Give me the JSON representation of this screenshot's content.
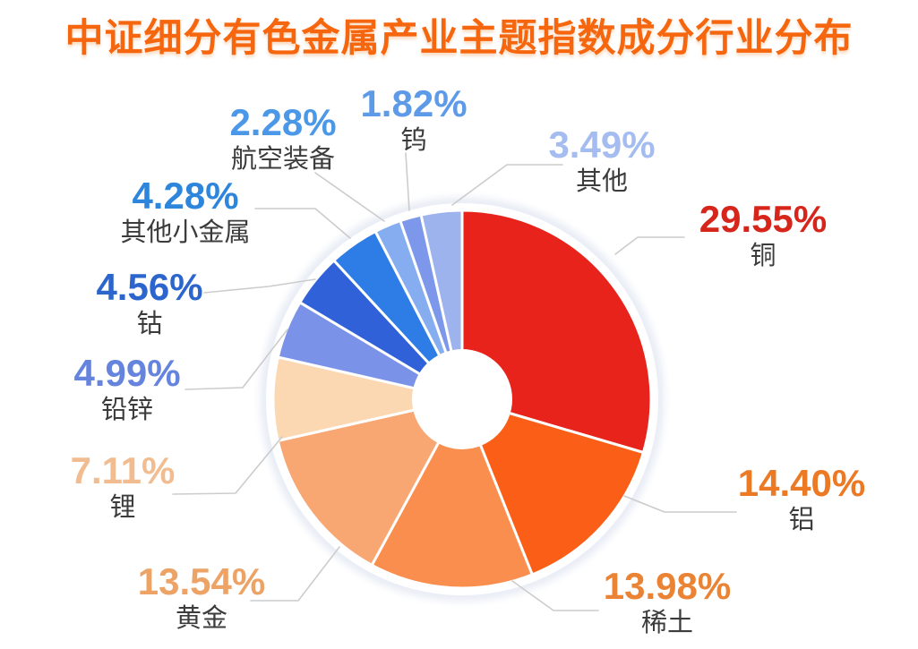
{
  "title": "中证细分有色金属产业主题指数成分行业分布",
  "title_color": "#f6660e",
  "chart_data": {
    "type": "pie",
    "title": "中证细分有色金属产业主题指数成分行业分布",
    "donut": true,
    "start_angle_deg": 0,
    "direction": "clockwise",
    "legend_position": "callout-labels",
    "category_label_color": "#3c3c3c",
    "callout_line_color": "#cccccc",
    "segments": [
      {
        "name": "铜",
        "value": 29.55,
        "value_label": "29.55%",
        "slice_color": "#e8231c",
        "label_color": "#d6261c"
      },
      {
        "name": "铝",
        "value": 14.4,
        "value_label": "14.40%",
        "slice_color": "#fb5e16",
        "label_color": "#ec7a25"
      },
      {
        "name": "稀土",
        "value": 13.98,
        "value_label": "13.98%",
        "slice_color": "#f98e4e",
        "label_color": "#ea8334"
      },
      {
        "name": "黄金",
        "value": 13.54,
        "value_label": "13.54%",
        "slice_color": "#f8a772",
        "label_color": "#eda266"
      },
      {
        "name": "锂",
        "value": 7.11,
        "value_label": "7.11%",
        "slice_color": "#fbd8b2",
        "label_color": "#f1bd90"
      },
      {
        "name": "铅锌",
        "value": 4.99,
        "value_label": "4.99%",
        "slice_color": "#7a92e8",
        "label_color": "#6484de"
      },
      {
        "name": "钴",
        "value": 4.56,
        "value_label": "4.56%",
        "slice_color": "#3061d8",
        "label_color": "#2c66cc"
      },
      {
        "name": "其他小金属",
        "value": 4.28,
        "value_label": "4.28%",
        "slice_color": "#2e7ce6",
        "label_color": "#2e86dc"
      },
      {
        "name": "航空装备",
        "value": 2.28,
        "value_label": "2.28%",
        "slice_color": "#86adf0",
        "label_color": "#4b97e8"
      },
      {
        "name": "钨",
        "value": 1.82,
        "value_label": "1.82%",
        "slice_color": "#7d98ea",
        "label_color": "#5d9ae8"
      },
      {
        "name": "其他",
        "value": 3.49,
        "value_label": "3.49%",
        "slice_color": "#9cb3ee",
        "label_color": "#a4bcf0"
      }
    ]
  }
}
